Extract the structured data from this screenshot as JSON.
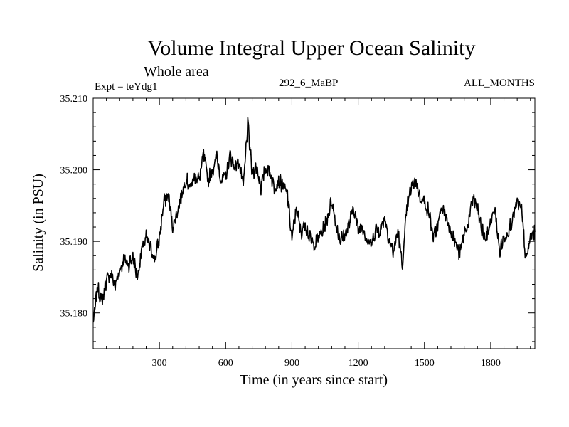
{
  "chart_data": {
    "type": "line",
    "title": "Volume Integral Upper Ocean Salinity",
    "subtitle": "Whole area",
    "experiment_label": "Expt = teYdg1",
    "center_label": "292_6_MaBP",
    "right_label": "ALL_MONTHS",
    "xlabel": "Time (in years since start)",
    "ylabel": "Salinity (in PSU)",
    "xlim": [
      0,
      2000
    ],
    "ylim": [
      35.175,
      35.21
    ],
    "x_ticks": [
      300,
      600,
      900,
      1200,
      1500,
      1800
    ],
    "x_tick_labels": [
      "300",
      "600",
      "900",
      "1200",
      "1500",
      "1800"
    ],
    "y_ticks": [
      35.18,
      35.19,
      35.2,
      35.21
    ],
    "y_tick_labels": [
      "35.180",
      "35.190",
      "35.200",
      "35.210"
    ],
    "series": [
      {
        "name": "Salinity",
        "x": [
          0,
          20,
          40,
          60,
          80,
          100,
          120,
          140,
          160,
          180,
          200,
          220,
          240,
          260,
          280,
          300,
          320,
          340,
          360,
          380,
          400,
          420,
          440,
          460,
          480,
          500,
          520,
          540,
          560,
          580,
          600,
          620,
          640,
          660,
          680,
          700,
          720,
          740,
          760,
          780,
          800,
          820,
          840,
          860,
          880,
          900,
          920,
          940,
          960,
          980,
          1000,
          1020,
          1040,
          1060,
          1080,
          1100,
          1120,
          1140,
          1160,
          1180,
          1200,
          1220,
          1240,
          1260,
          1280,
          1300,
          1320,
          1340,
          1360,
          1380,
          1400,
          1420,
          1440,
          1460,
          1480,
          1500,
          1520,
          1540,
          1560,
          1580,
          1600,
          1620,
          1640,
          1660,
          1680,
          1700,
          1720,
          1740,
          1760,
          1780,
          1800,
          1820,
          1840,
          1860,
          1880,
          1900,
          1920,
          1940,
          1960,
          1980,
          2000
        ],
        "values": [
          35.1785,
          35.1835,
          35.1815,
          35.1845,
          35.1855,
          35.1838,
          35.186,
          35.1875,
          35.1868,
          35.1878,
          35.185,
          35.1888,
          35.1905,
          35.189,
          35.1875,
          35.1905,
          35.1955,
          35.1965,
          35.192,
          35.194,
          35.1965,
          35.1988,
          35.1975,
          35.1992,
          35.1985,
          35.2022,
          35.1985,
          35.2,
          35.2018,
          35.1985,
          35.199,
          35.202,
          35.2005,
          35.2012,
          35.1975,
          35.2065,
          35.1995,
          35.2005,
          35.1975,
          35.2002,
          35.1998,
          35.1975,
          35.1985,
          35.1978,
          35.1965,
          35.1902,
          35.1948,
          35.1912,
          35.1925,
          35.1905,
          35.1895,
          35.1905,
          35.1915,
          35.1932,
          35.1958,
          35.1922,
          35.1902,
          35.1908,
          35.1925,
          35.1948,
          35.1915,
          35.1922,
          35.1902,
          35.1895,
          35.1918,
          35.1915,
          35.1935,
          35.1902,
          35.1885,
          35.1915,
          35.1865,
          35.1945,
          35.1975,
          35.1985,
          35.1962,
          35.1955,
          35.1942,
          35.1905,
          35.1922,
          35.1948,
          35.1932,
          35.1915,
          35.1898,
          35.1882,
          35.1912,
          35.1925,
          35.1962,
          35.1945,
          35.1915,
          35.1902,
          35.1928,
          35.1945,
          35.1885,
          35.1905,
          35.1915,
          35.1932,
          35.1955,
          35.1942,
          35.1872,
          35.1905,
          35.1915
        ]
      }
    ]
  }
}
